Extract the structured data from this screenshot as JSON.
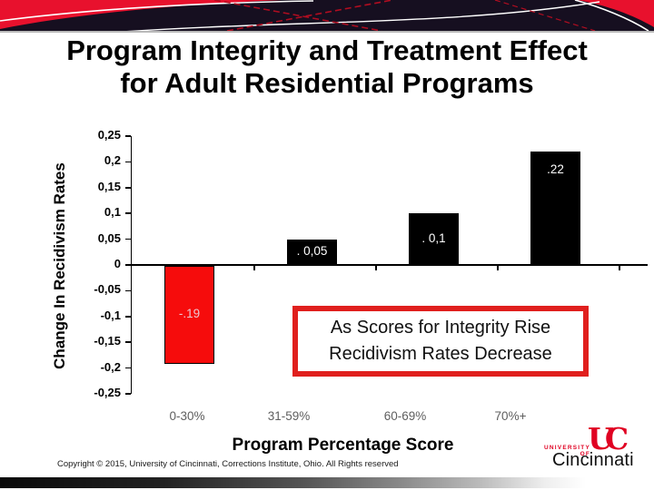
{
  "title": {
    "line1": "Program Integrity and Treatment Effect",
    "line2": "for Adult Residential Programs"
  },
  "chart_data": {
    "type": "bar",
    "title": "",
    "categories": [
      "0-30%",
      "31-59%",
      "60-69%",
      "70%+"
    ],
    "values": [
      -0.19,
      0.05,
      0.1,
      0.22
    ],
    "bar_labels": [
      "-.19",
      ". 0,05",
      ". 0,1",
      ".22"
    ],
    "bar_colors": [
      "#f60c0c",
      "#000000",
      "#000000",
      "#000000"
    ],
    "bar_label_colors": [
      "#edc6cf",
      "#ffffff",
      "#ffffff",
      "#ffffff"
    ],
    "xlabel": "Program Percentage Score",
    "ylabel": "Change In Recidivism Rates",
    "ylim": [
      -0.25,
      0.25
    ],
    "ytick_step": 0.05,
    "ytick_labels": [
      "0,25",
      "0,2",
      "0,15",
      "0,1",
      "0,05",
      "0",
      "-0,05",
      "-0,1",
      "-0,15",
      "-0,2",
      "-0,25"
    ],
    "grid": false,
    "legend": false,
    "category_label_color": "#5f5f5f"
  },
  "callout": {
    "line1": "As Scores for Integrity Rise",
    "line2": "Recidivism Rates Decrease",
    "border_color": "#e01f1d"
  },
  "footer": {
    "copyright": "Copyright © 2015, University of Cincinnati, Corrections Institute, Ohio. All Rights reserved"
  },
  "logo": {
    "monogram": "UC",
    "line1": "UNIVERSITY OF",
    "line2": "Cincinnati",
    "accent_color": "#e00122"
  },
  "theme": {
    "banner_bg": "#160f20",
    "banner_red": "#e8112d",
    "title_color": "#000000"
  }
}
